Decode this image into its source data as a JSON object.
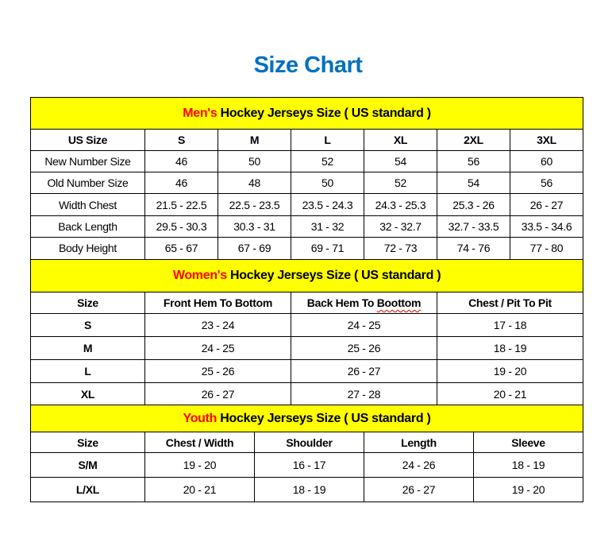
{
  "title": "Size Chart",
  "colors": {
    "title": "#0070C0",
    "header_bg": "#FFFF00",
    "header_highlight": "#FF0000"
  },
  "mens": {
    "header_highlight": "Men's",
    "header_rest": " Hockey Jerseys Size ( US standard )",
    "columns": [
      "US Size",
      "S",
      "M",
      "L",
      "XL",
      "2XL",
      "3XL"
    ],
    "rows": [
      [
        "New Number Size",
        "46",
        "50",
        "52",
        "54",
        "56",
        "60"
      ],
      [
        "Old Number Size",
        "46",
        "48",
        "50",
        "52",
        "54",
        "56"
      ],
      [
        "Width Chest",
        "21.5 - 22.5",
        "22.5 - 23.5",
        "23.5 - 24.3",
        "24.3 - 25.3",
        "25.3 - 26",
        "26 - 27"
      ],
      [
        "Back Length",
        "29.5 - 30.3",
        "30.3 - 31",
        "31 - 32",
        "32 - 32.7",
        "32.7 - 33.5",
        "33.5 - 34.6"
      ],
      [
        "Body Height",
        "65 - 67",
        "67 - 69",
        "69 - 71",
        "72 - 73",
        "74 - 76",
        "77 - 80"
      ]
    ]
  },
  "womens": {
    "header_highlight": "Women's",
    "header_rest": " Hockey Jerseys Size ( US standard )",
    "columns": [
      "Size",
      "Front Hem To Bottom",
      "Back Hem To Boottom",
      "Chest / Pit To Pit"
    ],
    "rows": [
      [
        "S",
        "23 - 24",
        "24 - 25",
        "17 - 18"
      ],
      [
        "M",
        "24 - 25",
        "25 - 26",
        "18 - 19"
      ],
      [
        "L",
        "25 - 26",
        "26 - 27",
        "19 - 20"
      ],
      [
        "XL",
        "26 - 27",
        "27 - 28",
        "20 - 21"
      ]
    ]
  },
  "youth": {
    "header_highlight": "Youth",
    "header_rest": " Hockey Jerseys Size ( US standard )",
    "columns": [
      "Size",
      "Chest / Width",
      "Shoulder",
      "Length",
      "Sleeve"
    ],
    "rows": [
      [
        "S/M",
        "19 - 20",
        "16 - 17",
        "24 - 26",
        "18 - 19"
      ],
      [
        "L/XL",
        "20 - 21",
        "18 - 19",
        "26 - 27",
        "19 - 20"
      ]
    ]
  }
}
